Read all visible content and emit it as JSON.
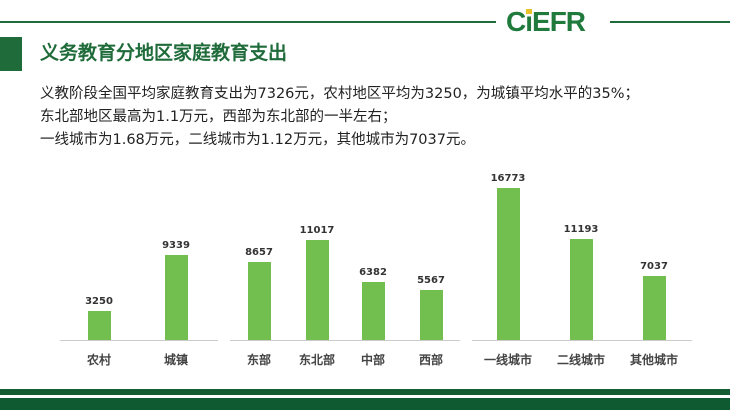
{
  "header": {
    "logo": "CIEFR",
    "title": "义务教育分地区家庭教育支出"
  },
  "description": [
    "义教阶段全国平均家庭教育支出为7326元，农村地区平均为3250，为城镇平均水平的35%；",
    "东北部地区最高为1.1万元，西部为东北部的一半左右；",
    "一线城市为1.68万元，二线城市为1.12万元，其他城市为7037元。"
  ],
  "colors": {
    "bar": "#72bf4f",
    "brand": "#1f6b3a"
  },
  "chart_data": [
    {
      "type": "bar",
      "categories": [
        "农村",
        "城镇"
      ],
      "values": [
        3250,
        9339
      ]
    },
    {
      "type": "bar",
      "categories": [
        "东部",
        "东北部",
        "中部",
        "西部"
      ],
      "values": [
        8657,
        11017,
        6382,
        5567
      ]
    },
    {
      "type": "bar",
      "categories": [
        "一线城市",
        "二线城市",
        "其他城市"
      ],
      "values": [
        16773,
        11193,
        7037
      ]
    }
  ]
}
